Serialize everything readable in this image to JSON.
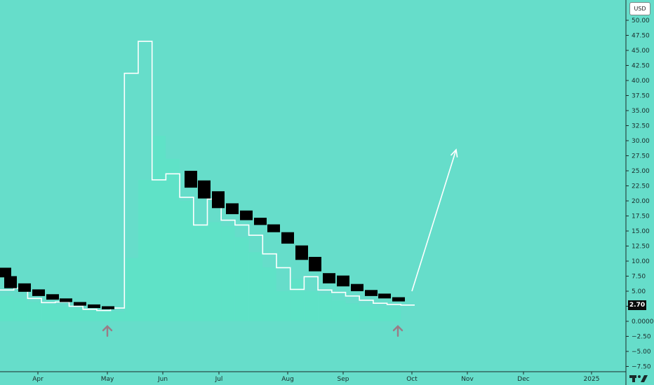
{
  "chart_data": {
    "type": "candlestick",
    "currency": "USD",
    "last_price": "2.70",
    "ylim": [
      -8.5,
      53.5
    ],
    "y_ticks": [
      "50.00",
      "47.50",
      "45.00",
      "42.50",
      "40.00",
      "37.50",
      "35.00",
      "32.50",
      "30.00",
      "27.50",
      "25.00",
      "22.50",
      "20.00",
      "17.50",
      "15.00",
      "12.50",
      "10.00",
      "7.50",
      "5.00",
      "2.50",
      "0.0000",
      "−2.50",
      "−5.00",
      "−7.50"
    ],
    "x_ticks": [
      "Apr",
      "May",
      "Jun",
      "Jul",
      "Aug",
      "Sep",
      "Oct",
      "Nov",
      "Dec",
      "2025"
    ],
    "volume_bars": [
      4.2,
      3.8,
      3.2,
      2.8,
      2.5,
      2.2,
      1.9,
      1.7,
      1.6,
      10.5,
      23.5,
      30.8,
      27.0,
      20.0,
      16.0,
      16.5,
      15.8,
      14.0,
      11.5,
      9.0,
      5.0,
      7.0,
      5.0,
      4.5,
      3.5,
      3.0,
      2.5,
      2.2,
      2.0
    ],
    "white_step_line": [
      5.2,
      5.5,
      3.8,
      3.1,
      3.2,
      2.5,
      2.0,
      1.8,
      2.2,
      41.2,
      46.5,
      23.5,
      24.5,
      20.6,
      16.0,
      20.3,
      16.8,
      16.0,
      14.3,
      11.2,
      8.9,
      5.3,
      7.4,
      5.2,
      4.8,
      4.2,
      3.5,
      3.0,
      2.8,
      2.7
    ],
    "candles": [
      {
        "open": 8.9,
        "close": 7.3
      },
      {
        "open": 7.5,
        "close": 5.5
      },
      {
        "open": 6.3,
        "close": 4.9
      },
      {
        "open": 5.3,
        "close": 4.2
      },
      {
        "open": 4.5,
        "close": 3.6
      },
      {
        "open": 3.8,
        "close": 3.2
      },
      {
        "open": 3.2,
        "close": 2.6
      },
      {
        "open": 2.8,
        "close": 2.2
      },
      {
        "open": 2.5,
        "close": 2.0
      },
      {
        "open": 25.0,
        "close": 22.2
      },
      {
        "open": 23.4,
        "close": 20.4
      },
      {
        "open": 21.6,
        "close": 18.8
      },
      {
        "open": 19.6,
        "close": 17.8
      },
      {
        "open": 18.4,
        "close": 16.8
      },
      {
        "open": 17.2,
        "close": 16.0
      },
      {
        "open": 16.1,
        "close": 14.8
      },
      {
        "open": 14.8,
        "close": 12.9
      },
      {
        "open": 12.6,
        "close": 10.2
      },
      {
        "open": 10.7,
        "close": 8.3
      },
      {
        "open": 8.0,
        "close": 6.3
      },
      {
        "open": 7.6,
        "close": 5.8
      },
      {
        "open": 6.2,
        "close": 5.0
      },
      {
        "open": 5.2,
        "close": 4.2
      },
      {
        "open": 4.6,
        "close": 3.8
      },
      {
        "open": 4.0,
        "close": 3.3
      }
    ],
    "annotations": {
      "up_arrows": [
        "May",
        "end of Sep"
      ],
      "trend_arrow": {
        "from": 5.0,
        "to": 28.5
      }
    },
    "grid": false,
    "colors": {
      "background": "#66ddca",
      "volume": "#5ee3c6",
      "candle": "#000000",
      "line": "#ffffff",
      "arrow_marker": "#9b7c87"
    }
  }
}
